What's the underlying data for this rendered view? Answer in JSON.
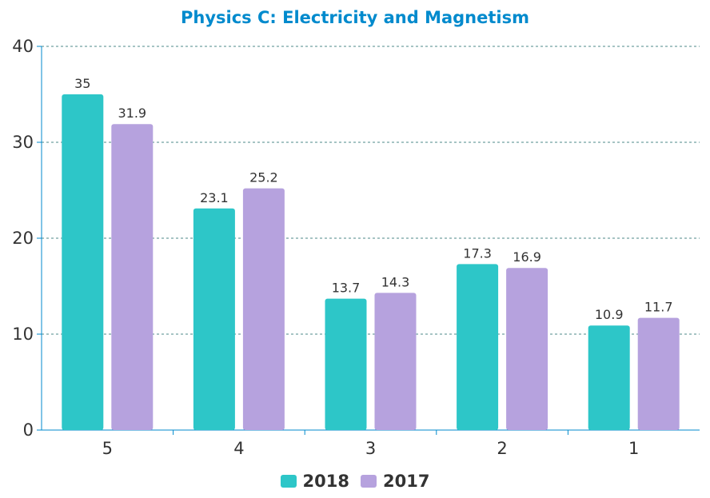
{
  "chart_data": {
    "type": "bar",
    "title": "Physics C: Electricity and Magnetism",
    "xlabel": "",
    "ylabel": "",
    "categories": [
      "5",
      "4",
      "3",
      "2",
      "1"
    ],
    "series": [
      {
        "name": "2018",
        "values": [
          35,
          23.1,
          13.7,
          17.3,
          10.9
        ],
        "color": "#2dc6c8"
      },
      {
        "name": "2017",
        "values": [
          31.9,
          25.2,
          14.3,
          16.9,
          11.7
        ],
        "color": "#b6a2de"
      }
    ],
    "ylim": [
      0,
      40
    ],
    "yticks": [
      0,
      10,
      20,
      30,
      40
    ],
    "grid": true,
    "legend_position": "bottom",
    "colors": {
      "title": "#008acd",
      "axis": "#008acd",
      "gridline": "#4e8a8a",
      "text": "#333333"
    }
  }
}
